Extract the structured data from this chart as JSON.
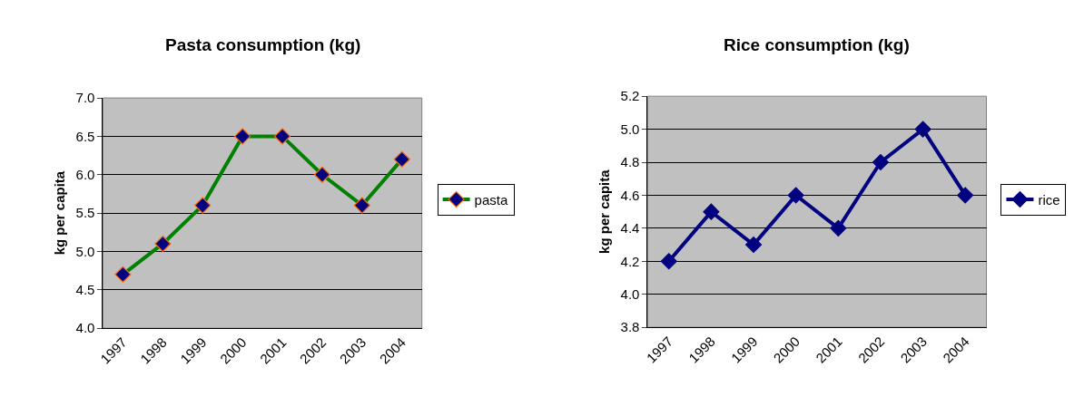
{
  "chart_data": [
    {
      "type": "line",
      "title": "Pasta consumption (kg)",
      "ylabel": "kg per capita",
      "categories": [
        "1997",
        "1998",
        "1999",
        "2000",
        "2001",
        "2002",
        "2003",
        "2004"
      ],
      "series": [
        {
          "name": "pasta",
          "color": "#008000",
          "values": [
            4.7,
            5.1,
            5.6,
            6.5,
            6.5,
            6.0,
            5.6,
            6.2
          ]
        }
      ],
      "ylim": [
        4.0,
        7.0
      ],
      "yticks": [
        {
          "value": 4.0,
          "label": "4.0"
        },
        4.5,
        {
          "value": 5.0,
          "label": "5.0"
        },
        5.5,
        {
          "value": 6.0,
          "label": "6.0"
        },
        6.5,
        {
          "value": 7.0,
          "label": "7.0"
        }
      ],
      "grid": "y",
      "legend": "right",
      "marker": "diamond",
      "line_style": "solid"
    },
    {
      "type": "line",
      "title": "Rice consumption (kg)",
      "ylabel": "kg per capita",
      "categories": [
        "1997",
        "1998",
        "1999",
        "2000",
        "2001",
        "2002",
        "2003",
        "2004"
      ],
      "series": [
        {
          "name": "rice",
          "color": "#000080",
          "values": [
            4.2,
            4.5,
            4.3,
            4.6,
            4.4,
            4.8,
            5.0,
            4.6
          ]
        }
      ],
      "ylim": [
        3.8,
        5.2
      ],
      "yticks": [
        3.8,
        {
          "value": 4.0,
          "label": "4.0"
        },
        4.2,
        4.4,
        4.6,
        4.8,
        {
          "value": 5.0,
          "label": "5.0"
        },
        5.2
      ],
      "grid": "y",
      "legend": "right",
      "marker": "diamond",
      "line_style": "solid"
    }
  ]
}
